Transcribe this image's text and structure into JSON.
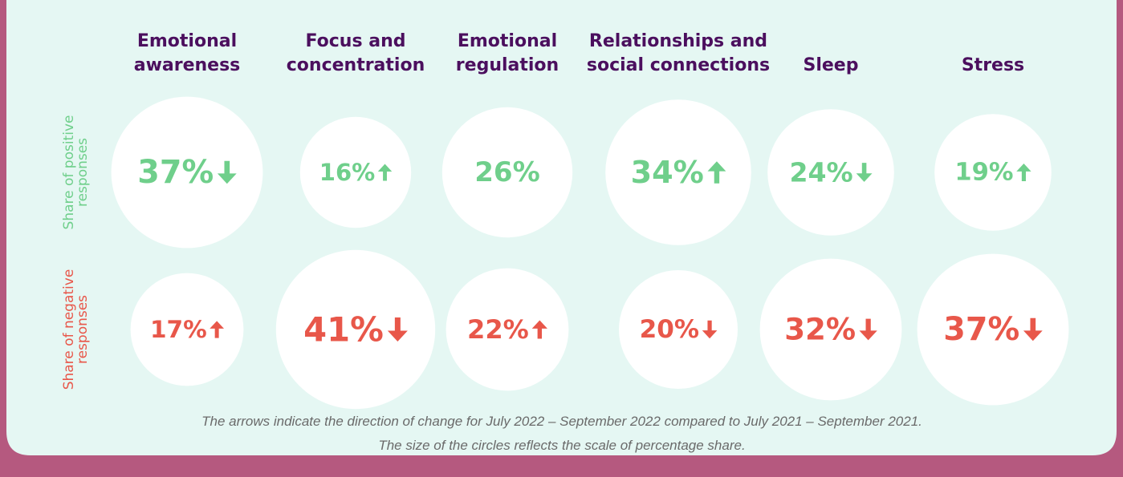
{
  "chart_data": {
    "type": "bubble",
    "categories": [
      "Emotional awareness",
      "Focus and concentration",
      "Emotional regulation",
      "Relationships and social connections",
      "Sleep",
      "Stress"
    ],
    "category_lines": [
      [
        "Emotional",
        "awareness"
      ],
      [
        "Focus and",
        "concentration"
      ],
      [
        "Emotional",
        "regulation"
      ],
      [
        "Relationships and",
        "social connections"
      ],
      [
        "Sleep"
      ],
      [
        "Stress"
      ]
    ],
    "series": [
      {
        "name": "Share of positive responses",
        "name_lines": [
          "Share of positive",
          "responses"
        ],
        "color": "#6fcf8b",
        "values": [
          37,
          16,
          26,
          34,
          24,
          19
        ],
        "value_labels": [
          "37%",
          "16%",
          "26%",
          "34%",
          "24%",
          "19%"
        ],
        "trends": [
          "down",
          "up",
          null,
          "up",
          "down",
          "up"
        ]
      },
      {
        "name": "Share of negative responses",
        "name_lines": [
          "Share of negative",
          "responses"
        ],
        "color": "#e8574a",
        "values": [
          17,
          41,
          22,
          20,
          32,
          37
        ],
        "value_labels": [
          "17%",
          "41%",
          "22%",
          "20%",
          "32%",
          "37%"
        ],
        "trends": [
          "up",
          "down",
          "up",
          "down",
          "down",
          "down"
        ]
      }
    ],
    "notes": [
      "The arrows indicate the direction of change for July 2022 – September 2022 compared to July 2021 – September 2021.",
      "The size of the circles reflects the scale of percentage share."
    ]
  }
}
